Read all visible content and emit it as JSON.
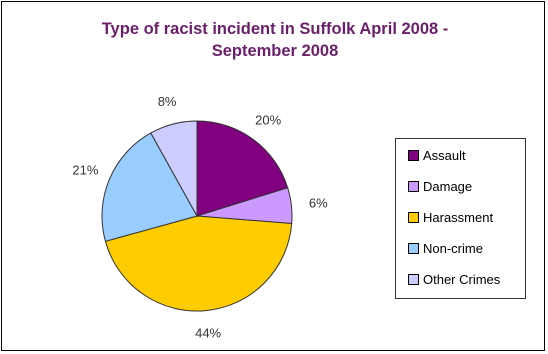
{
  "chart_data": {
    "type": "pie",
    "title": "Type of racist incident in Suffolk April 2008 - September 2008",
    "slices": [
      {
        "name": "Assault",
        "value": 20,
        "label": "20%",
        "color": "#800080"
      },
      {
        "name": "Damage",
        "value": 6,
        "label": "6%",
        "color": "#cc99ff"
      },
      {
        "name": "Harassment",
        "value": 44,
        "label": "44%",
        "color": "#ffcc00"
      },
      {
        "name": "Non-crime",
        "value": 21,
        "label": "21%",
        "color": "#99ccff"
      },
      {
        "name": "Other Crimes",
        "value": 8,
        "label": "8%",
        "color": "#ccccff"
      }
    ],
    "legend_position": "right",
    "slice_border_color": "#333333"
  }
}
